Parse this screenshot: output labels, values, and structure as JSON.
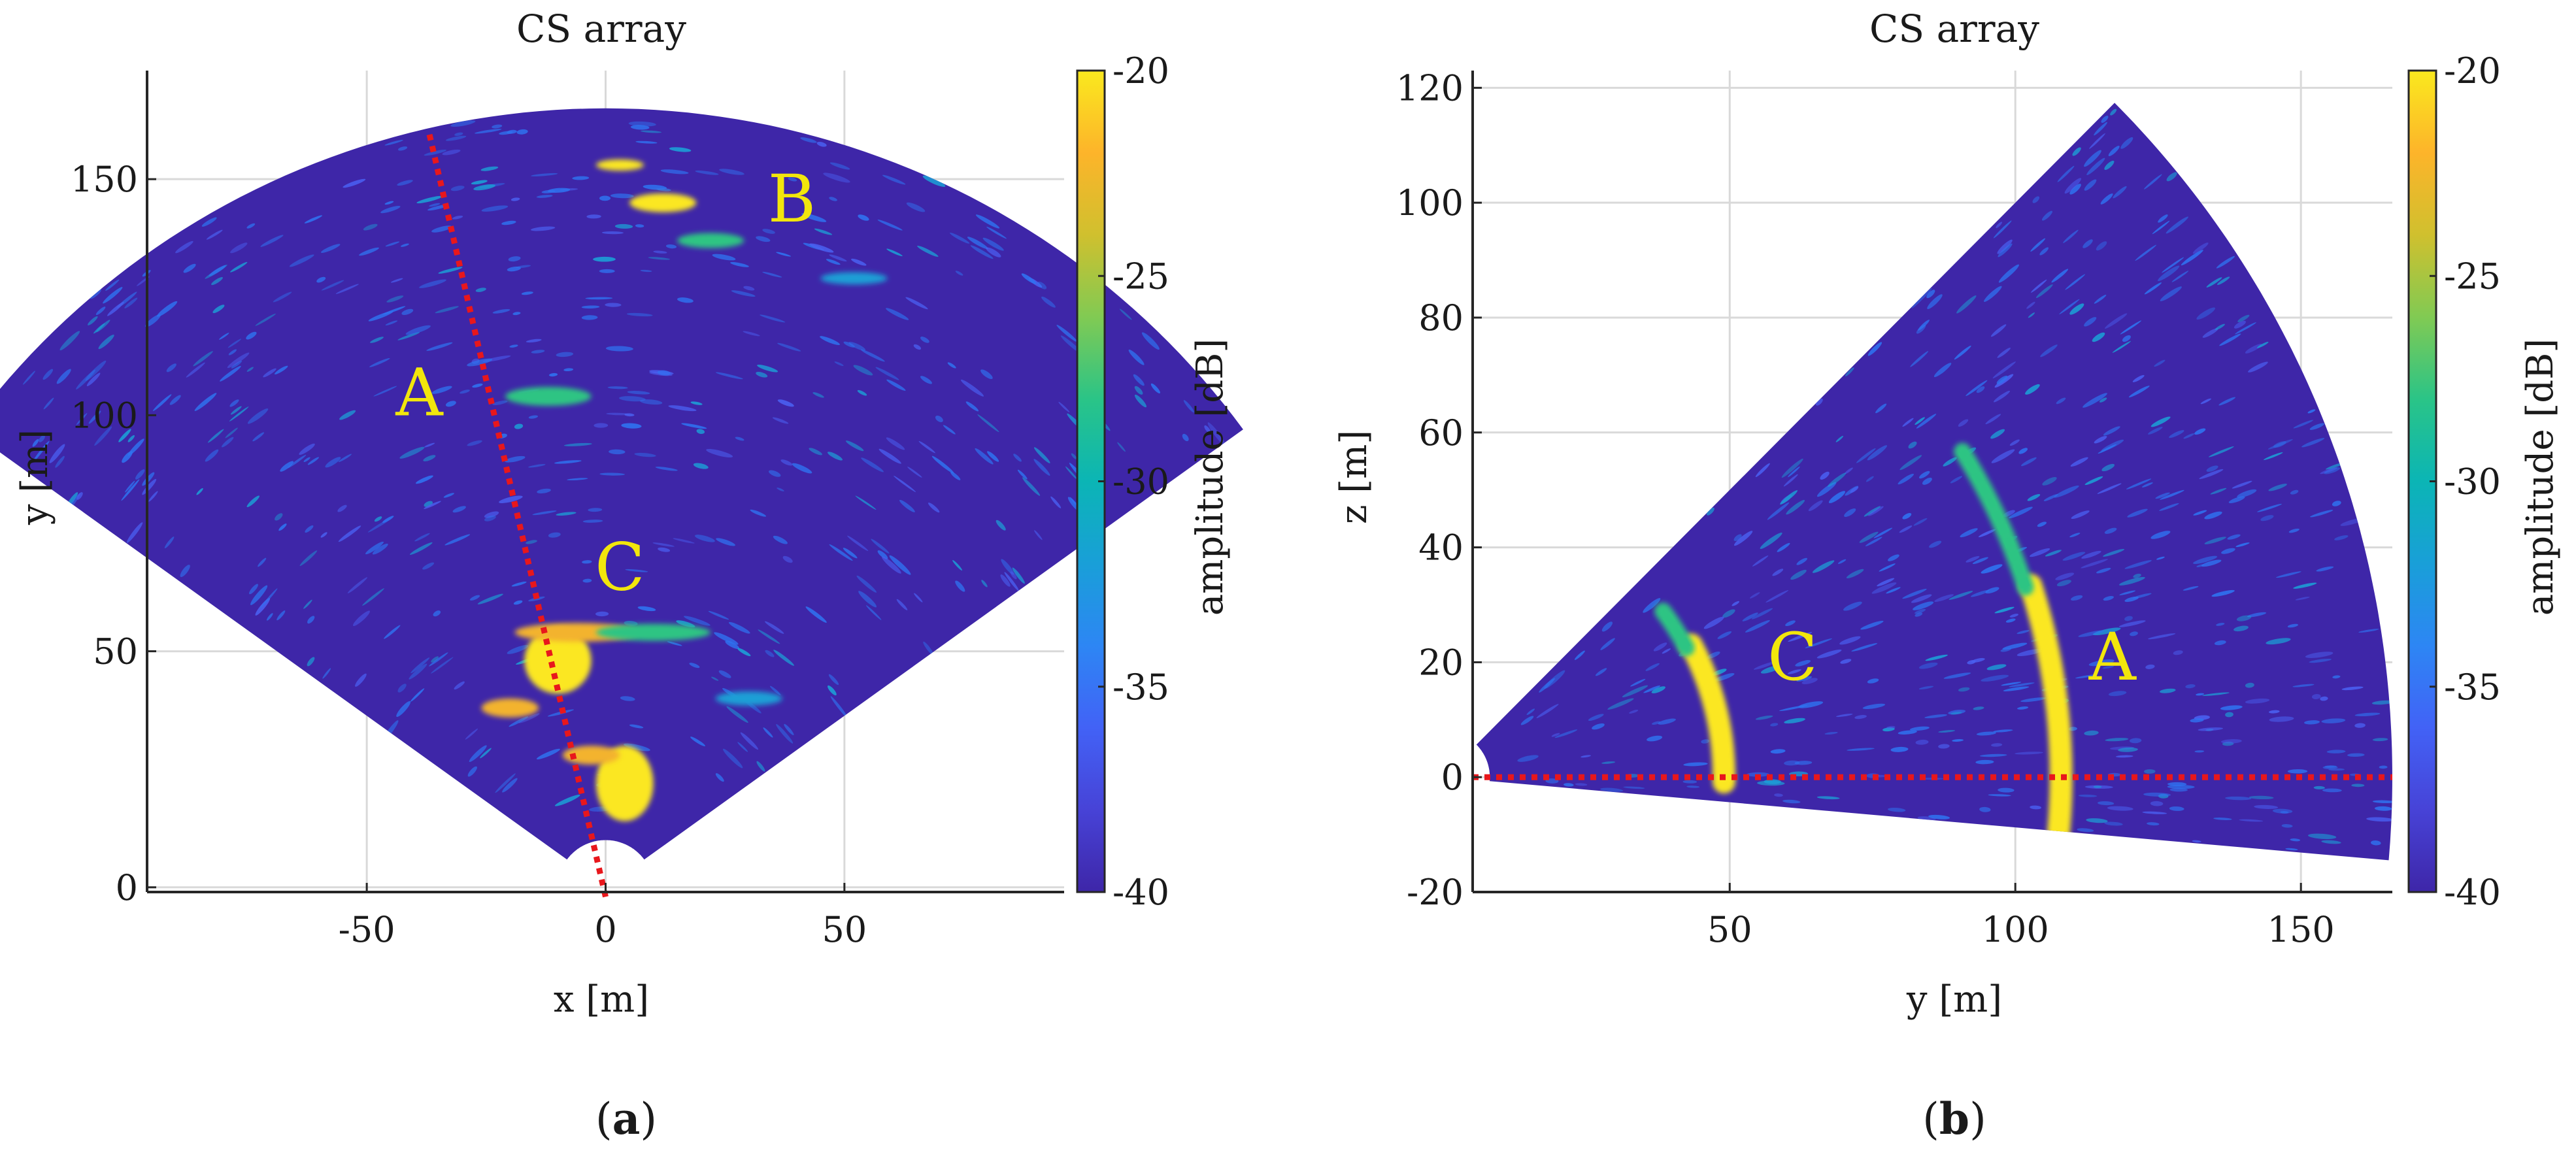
{
  "colorbar_colors": [
    "#3e26a8",
    "#4743d7",
    "#4262f6",
    "#2d86f4",
    "#199fd8",
    "#0bb5b5",
    "#2ac487",
    "#81ca53",
    "#d0c02e",
    "#fdb42a",
    "#fae91e"
  ],
  "colors": {
    "cone": "#3e26a8",
    "bright": "#fbe722",
    "orange": "#f3b32f",
    "green": "#2dc483",
    "cyan": "#1c9fd6",
    "blue": "#2f72f0",
    "dotted_line": "#e8171c",
    "grid": "#d9d9d9",
    "label_text": "#f2e60c"
  },
  "chart_data": [
    {
      "type": "heatmap",
      "panel_label": "a",
      "title": "CS array",
      "xlabel": "x [m]",
      "ylabel": "y [m]",
      "xlim": [
        -96,
        96
      ],
      "ylim": [
        -1,
        173
      ],
      "xticks": [
        -50,
        0,
        50
      ],
      "xtick_labels": [
        "-50",
        "0",
        "50"
      ],
      "yticks": [
        0,
        50,
        100,
        150
      ],
      "ytick_labels": [
        "0",
        "50",
        "100",
        "150"
      ],
      "grid": true,
      "colorbar": {
        "label": "amplitude [dB]",
        "range": [
          -40,
          -20
        ],
        "ticks": [
          -20,
          -25,
          -30,
          -35,
          -40
        ],
        "tick_labels": [
          "-20",
          "-25",
          "-30",
          "-35",
          "-40"
        ]
      },
      "sector": {
        "apex": [
          0,
          0
        ],
        "r_min": 10,
        "r_max": 165,
        "angle_min_deg": 36,
        "angle_max_deg": 144
      },
      "dotted_line": {
        "from": [
          0,
          -2
        ],
        "to": [
          -37,
          160
        ]
      },
      "annotations": [
        {
          "text": "A",
          "x": -39,
          "y": 100
        },
        {
          "text": "B",
          "x": 39,
          "y": 141
        },
        {
          "text": "C",
          "x": 3,
          "y": 63
        }
      ],
      "highlights": [
        {
          "x": -10,
          "y": 48,
          "rx": 7,
          "ry": 7,
          "color": "bright"
        },
        {
          "x": -6,
          "y": 54,
          "rx": 13,
          "ry": 2,
          "color": "orange"
        },
        {
          "x": 12,
          "y": 145,
          "rx": 7,
          "ry": 2,
          "color": "bright"
        },
        {
          "x": 22,
          "y": 137,
          "rx": 7,
          "ry": 1.6,
          "color": "green"
        },
        {
          "x": 3,
          "y": 153,
          "rx": 5,
          "ry": 1.2,
          "color": "bright"
        },
        {
          "x": -12,
          "y": 104,
          "rx": 9,
          "ry": 2,
          "color": "green"
        },
        {
          "x": 52,
          "y": 129,
          "rx": 7,
          "ry": 1.3,
          "color": "cyan"
        },
        {
          "x": 4,
          "y": 22,
          "rx": 6,
          "ry": 8,
          "color": "bright"
        },
        {
          "x": -3,
          "y": 28,
          "rx": 6,
          "ry": 2,
          "color": "orange"
        },
        {
          "x": 10,
          "y": 54,
          "rx": 12,
          "ry": 1.8,
          "color": "green"
        },
        {
          "x": -20,
          "y": 38,
          "rx": 6,
          "ry": 2,
          "color": "orange"
        },
        {
          "x": 30,
          "y": 40,
          "rx": 7,
          "ry": 1.5,
          "color": "cyan"
        }
      ]
    },
    {
      "type": "heatmap",
      "panel_label": "b",
      "title": "CS array",
      "xlabel": "y [m]",
      "ylabel": "z [m]",
      "xlim": [
        5,
        166
      ],
      "ylim": [
        -20,
        123
      ],
      "xticks": [
        50,
        100,
        150
      ],
      "xtick_labels": [
        "50",
        "100",
        "150"
      ],
      "yticks": [
        -20,
        0,
        20,
        40,
        60,
        80,
        100,
        120
      ],
      "ytick_labels": [
        "-20",
        "0",
        "20",
        "40",
        "60",
        "80",
        "100",
        "120"
      ],
      "grid": true,
      "colorbar": {
        "label": "amplitude [dB]",
        "range": [
          -40,
          -20
        ],
        "ticks": [
          -20,
          -25,
          -30,
          -35,
          -40
        ],
        "tick_labels": [
          "-20",
          "-25",
          "-30",
          "-35",
          "-40"
        ]
      },
      "sector": {
        "apex": [
          0,
          0
        ],
        "r_min": 8,
        "r_max": 166,
        "angle_min_deg": -5,
        "angle_max_deg": 45
      },
      "dotted_line": {
        "from": [
          5,
          0
        ],
        "to": [
          166,
          0
        ]
      },
      "annotations": [
        {
          "text": "A",
          "x": 117,
          "y": 17
        },
        {
          "text": "C",
          "x": 61,
          "y": 17
        }
      ],
      "arcs": [
        {
          "radius": 49,
          "angle_min_deg": -1,
          "angle_max_deg": 28,
          "width": 4,
          "color": "bright"
        },
        {
          "radius": 48,
          "angle_min_deg": 28,
          "angle_max_deg": 37,
          "width": 3,
          "color": "green"
        },
        {
          "radius": 108,
          "angle_min_deg": -5,
          "angle_max_deg": 18,
          "width": 4,
          "color": "bright"
        },
        {
          "radius": 107,
          "angle_min_deg": 18,
          "angle_max_deg": 32,
          "width": 3,
          "color": "green"
        }
      ]
    }
  ],
  "panels": {
    "a": {
      "label_text": "a"
    },
    "b": {
      "label_text": "b"
    }
  }
}
